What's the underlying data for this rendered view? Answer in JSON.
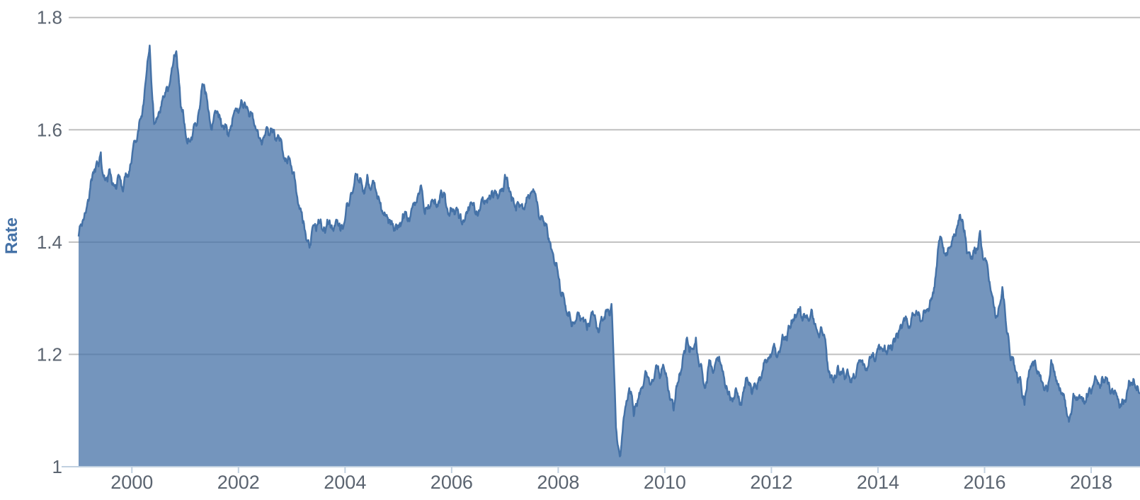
{
  "chart_data": {
    "type": "area",
    "title": "",
    "xlabel": "",
    "ylabel": "Rate",
    "ylim": [
      1.0,
      1.8
    ],
    "y_ticks": [
      1,
      1.2,
      1.4,
      1.6,
      1.8
    ],
    "y_tick_labels": [
      "1",
      "1.2",
      "1.4",
      "1.6",
      "1.8"
    ],
    "x_tick_years": [
      2000,
      2002,
      2004,
      2006,
      2008,
      2010,
      2012,
      2014,
      2016,
      2018
    ],
    "x_tick_labels": [
      "2000",
      "2002",
      "2004",
      "2006",
      "2008",
      "2010",
      "2012",
      "2014",
      "2016",
      "2018"
    ],
    "x_start_year": 1999,
    "x_end_year": 2019,
    "sampling": "monthly",
    "series": [
      {
        "name": "Rate",
        "start": "1999-01",
        "interval": "monthly",
        "values": [
          1.41,
          1.44,
          1.47,
          1.51,
          1.54,
          1.56,
          1.51,
          1.53,
          1.5,
          1.52,
          1.49,
          1.52,
          1.55,
          1.58,
          1.62,
          1.68,
          1.75,
          1.61,
          1.63,
          1.66,
          1.67,
          1.71,
          1.74,
          1.64,
          1.6,
          1.58,
          1.61,
          1.63,
          1.68,
          1.65,
          1.6,
          1.63,
          1.62,
          1.61,
          1.6,
          1.63,
          1.63,
          1.64,
          1.64,
          1.63,
          1.6,
          1.58,
          1.59,
          1.59,
          1.6,
          1.59,
          1.56,
          1.54,
          1.53,
          1.49,
          1.46,
          1.42,
          1.39,
          1.43,
          1.44,
          1.42,
          1.44,
          1.43,
          1.44,
          1.42,
          1.44,
          1.47,
          1.5,
          1.51,
          1.49,
          1.52,
          1.5,
          1.49,
          1.47,
          1.45,
          1.44,
          1.42,
          1.43,
          1.45,
          1.44,
          1.46,
          1.47,
          1.5,
          1.45,
          1.46,
          1.47,
          1.47,
          1.48,
          1.46,
          1.46,
          1.46,
          1.45,
          1.44,
          1.46,
          1.47,
          1.45,
          1.48,
          1.47,
          1.49,
          1.49,
          1.49,
          1.52,
          1.49,
          1.47,
          1.47,
          1.46,
          1.48,
          1.49,
          1.48,
          1.44,
          1.43,
          1.4,
          1.37,
          1.34,
          1.31,
          1.27,
          1.25,
          1.26,
          1.26,
          1.26,
          1.25,
          1.27,
          1.24,
          1.26,
          1.28,
          1.29,
          1.07,
          1.02,
          1.1,
          1.14,
          1.09,
          1.12,
          1.14,
          1.16,
          1.15,
          1.18,
          1.16,
          1.17,
          1.13,
          1.1,
          1.15,
          1.19,
          1.23,
          1.21,
          1.23,
          1.18,
          1.14,
          1.19,
          1.17,
          1.19,
          1.17,
          1.14,
          1.12,
          1.14,
          1.11,
          1.14,
          1.15,
          1.14,
          1.15,
          1.17,
          1.19,
          1.2,
          1.2,
          1.21,
          1.23,
          1.25,
          1.26,
          1.28,
          1.26,
          1.27,
          1.28,
          1.25,
          1.24,
          1.23,
          1.17,
          1.15,
          1.18,
          1.17,
          1.17,
          1.15,
          1.16,
          1.19,
          1.18,
          1.19,
          1.2,
          1.21,
          1.21,
          1.2,
          1.21,
          1.23,
          1.25,
          1.26,
          1.25,
          1.27,
          1.27,
          1.26,
          1.28,
          1.3,
          1.34,
          1.41,
          1.38,
          1.39,
          1.41,
          1.43,
          1.44,
          1.38,
          1.37,
          1.38,
          1.42,
          1.37,
          1.33,
          1.29,
          1.27,
          1.32,
          1.24,
          1.19,
          1.17,
          1.16,
          1.11,
          1.17,
          1.18,
          1.17,
          1.15,
          1.14,
          1.19,
          1.16,
          1.14,
          1.12,
          1.08,
          1.13,
          1.12,
          1.12,
          1.13,
          1.13,
          1.16,
          1.14,
          1.15,
          1.15,
          1.13,
          1.12,
          1.12,
          1.13,
          1.15,
          1.14,
          1.13
        ]
      }
    ],
    "legend": "none",
    "grid": true,
    "colors": {
      "area_fill": "rgba(69,114,167,0.75)",
      "series_line": "#4572A7",
      "grid_line": "#C0C0C0",
      "axis_line": "#C0D0E0",
      "tick_mark": "#C0D0E0",
      "tick_label": "#5B6470",
      "axis_title": "#4572A7",
      "background": "#FFFFFF"
    }
  }
}
